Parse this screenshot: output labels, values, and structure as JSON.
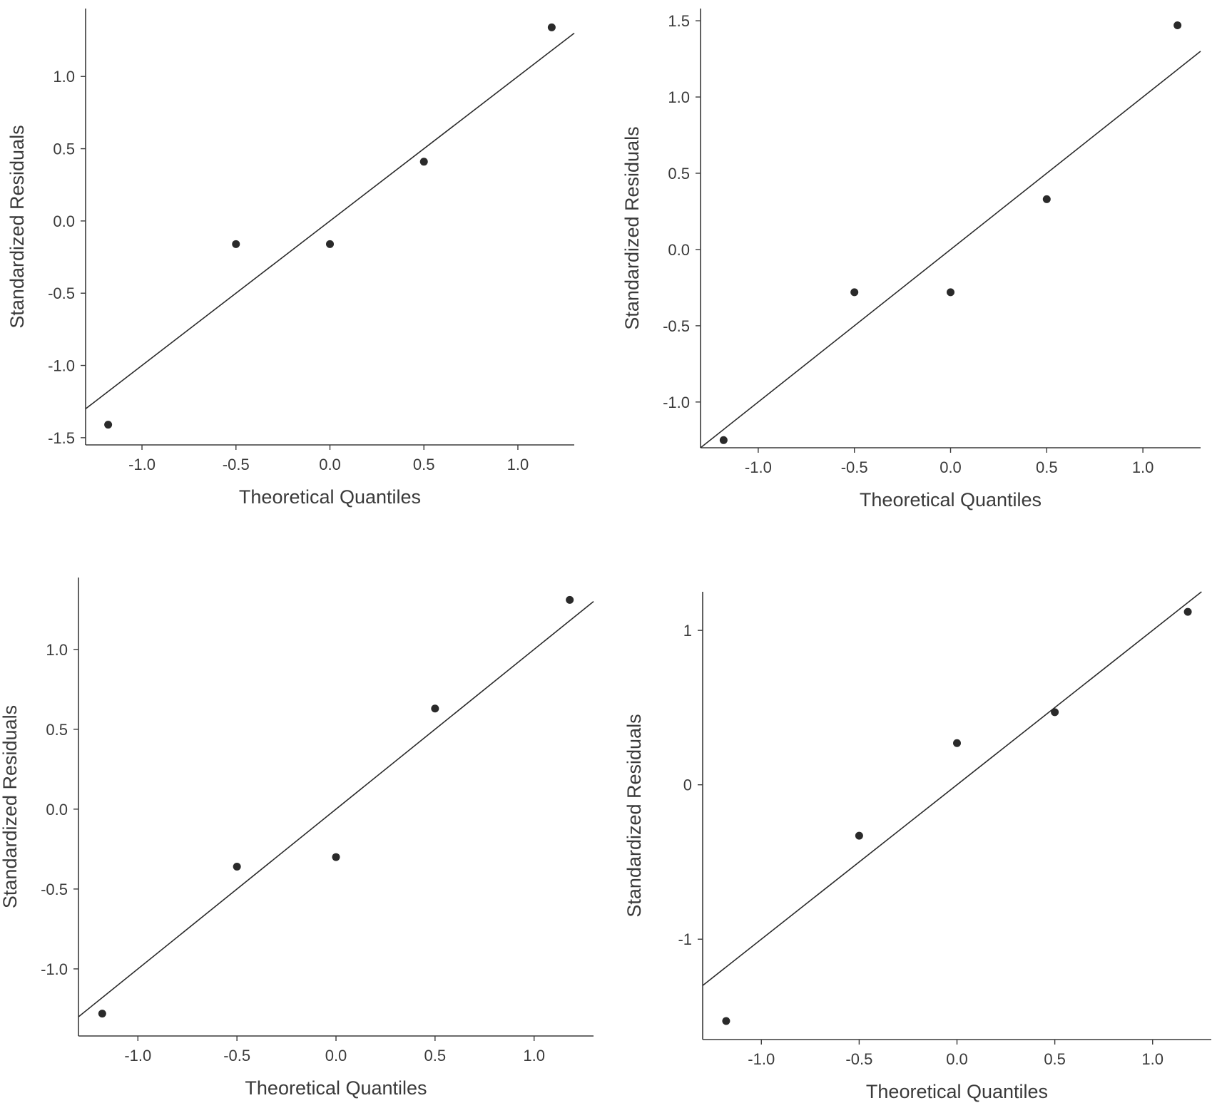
{
  "chart_data": [
    {
      "type": "scatter",
      "title": "",
      "xlabel": "Theoretical Quantiles",
      "ylabel": "Standardized Residuals",
      "xlim": [
        -1.3,
        1.3
      ],
      "ylim": [
        -1.55,
        1.47
      ],
      "xticks": [
        -1.0,
        -0.5,
        0.0,
        0.5,
        1.0
      ],
      "xtick_labels": [
        "-1.0",
        "-0.5",
        "0.0",
        "0.5",
        "1.0"
      ],
      "yticks": [
        -1.5,
        -1.0,
        -0.5,
        0.0,
        0.5,
        1.0
      ],
      "ytick_labels": [
        "-1.5",
        "-1.0",
        "-0.5",
        "0.0",
        "0.5",
        "1.0"
      ],
      "points": [
        {
          "x": -1.18,
          "y": -1.41
        },
        {
          "x": -0.5,
          "y": -0.16
        },
        {
          "x": 0.0,
          "y": -0.16
        },
        {
          "x": 0.5,
          "y": 0.41
        },
        {
          "x": 1.18,
          "y": 1.34
        }
      ],
      "reference_line": {
        "slope": 1,
        "intercept": 0
      },
      "grid": false
    },
    {
      "type": "scatter",
      "title": "",
      "xlabel": "Theoretical Quantiles",
      "ylabel": "Standardized Residuals",
      "xlim": [
        -1.3,
        1.3
      ],
      "ylim": [
        -1.3,
        1.58
      ],
      "xticks": [
        -1.0,
        -0.5,
        0.0,
        0.5,
        1.0
      ],
      "xtick_labels": [
        "-1.0",
        "-0.5",
        "0.0",
        "0.5",
        "1.0"
      ],
      "yticks": [
        -1.0,
        -0.5,
        0.0,
        0.5,
        1.0,
        1.5
      ],
      "ytick_labels": [
        "-1.0",
        "-0.5",
        "0.0",
        "0.5",
        "1.0",
        "1.5"
      ],
      "points": [
        {
          "x": -1.18,
          "y": -1.25
        },
        {
          "x": -0.5,
          "y": -0.28
        },
        {
          "x": 0.0,
          "y": -0.28
        },
        {
          "x": 0.5,
          "y": 0.33
        },
        {
          "x": 1.18,
          "y": 1.47
        }
      ],
      "reference_line": {
        "slope": 1,
        "intercept": 0
      },
      "grid": false
    },
    {
      "type": "scatter",
      "title": "",
      "xlabel": "Theoretical Quantiles",
      "ylabel": "Standardized Residuals",
      "xlim": [
        -1.3,
        1.3
      ],
      "ylim": [
        -1.42,
        1.45
      ],
      "xticks": [
        -1.0,
        -0.5,
        0.0,
        0.5,
        1.0
      ],
      "xtick_labels": [
        "-1.0",
        "-0.5",
        "0.0",
        "0.5",
        "1.0"
      ],
      "yticks": [
        -1.0,
        -0.5,
        0.0,
        0.5,
        1.0
      ],
      "ytick_labels": [
        "-1.0",
        "-0.5",
        "0.0",
        "0.5",
        "1.0"
      ],
      "points": [
        {
          "x": -1.18,
          "y": -1.28
        },
        {
          "x": -0.5,
          "y": -0.36
        },
        {
          "x": 0.0,
          "y": -0.3
        },
        {
          "x": 0.5,
          "y": 0.63
        },
        {
          "x": 1.18,
          "y": 1.31
        }
      ],
      "reference_line": {
        "slope": 1,
        "intercept": 0
      },
      "grid": false
    },
    {
      "type": "scatter",
      "title": "",
      "xlabel": "Theoretical Quantiles",
      "ylabel": "Standardized Residuals",
      "xlim": [
        -1.3,
        1.3
      ],
      "ylim": [
        -1.65,
        1.25
      ],
      "xticks": [
        -1.0,
        -0.5,
        0.0,
        0.5,
        1.0
      ],
      "xtick_labels": [
        "-1.0",
        "-0.5",
        "0.0",
        "0.5",
        "1.0"
      ],
      "yticks": [
        -1,
        0,
        1
      ],
      "ytick_labels": [
        "-1",
        "0",
        "1"
      ],
      "points": [
        {
          "x": -1.18,
          "y": -1.53
        },
        {
          "x": -0.5,
          "y": -0.33
        },
        {
          "x": 0.0,
          "y": 0.27
        },
        {
          "x": 0.5,
          "y": 0.47
        },
        {
          "x": 1.18,
          "y": 1.12
        }
      ],
      "reference_line": {
        "slope": 1,
        "intercept": 0
      },
      "grid": false
    }
  ]
}
